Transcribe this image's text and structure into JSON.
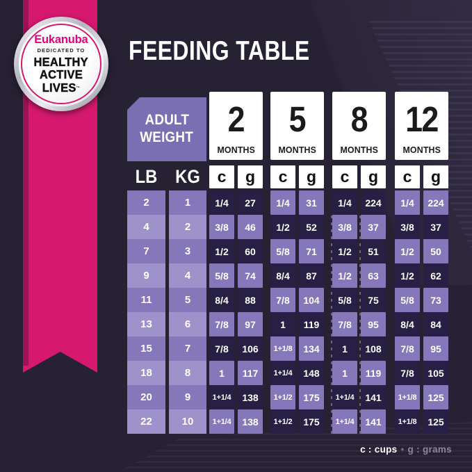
{
  "badge": {
    "brand": "Eukanuba",
    "dedicated": "DEDICATED TO",
    "lines": [
      "HEALTHY",
      "ACTIVE",
      "LIVES"
    ],
    "trademark": "™"
  },
  "chart_data": {
    "type": "table",
    "title": "FEEDING TABLE",
    "corner_header": [
      "ADULT",
      "WEIGHT"
    ],
    "weight_unit_headers": [
      "LB",
      "KG"
    ],
    "month_headers": [
      {
        "number": "2",
        "label": "MONTHS"
      },
      {
        "number": "5",
        "label": "MONTHS"
      },
      {
        "number": "8",
        "label": "MONTHS"
      },
      {
        "number": "12",
        "label": "MONTHS"
      }
    ],
    "measure_headers": [
      "c",
      "g",
      "c",
      "g",
      "c",
      "g",
      "c",
      "g"
    ],
    "rows": [
      {
        "lb": "2",
        "kg": "1",
        "values": [
          "1/4",
          "27",
          "1/4",
          "31",
          "1/4",
          "224",
          "1/4",
          "224"
        ]
      },
      {
        "lb": "4",
        "kg": "2",
        "values": [
          "3/8",
          "46",
          "1/2",
          "52",
          "3/8",
          "37",
          "3/8",
          "37"
        ]
      },
      {
        "lb": "7",
        "kg": "3",
        "values": [
          "1/2",
          "60",
          "5/8",
          "71",
          "1/2",
          "51",
          "1/2",
          "50"
        ]
      },
      {
        "lb": "9",
        "kg": "4",
        "values": [
          "5/8",
          "74",
          "8/4",
          "87",
          "1/2",
          "63",
          "1/2",
          "62"
        ]
      },
      {
        "lb": "11",
        "kg": "5",
        "values": [
          "8/4",
          "88",
          "7/8",
          "104",
          "5/8",
          "75",
          "5/8",
          "73"
        ]
      },
      {
        "lb": "13",
        "kg": "6",
        "values": [
          "7/8",
          "97",
          "1",
          "119",
          "7/8",
          "95",
          "8/4",
          "84"
        ]
      },
      {
        "lb": "15",
        "kg": "7",
        "values": [
          "7/8",
          "106",
          "1+1/8",
          "134",
          "1",
          "108",
          "7/8",
          "95"
        ]
      },
      {
        "lb": "18",
        "kg": "8",
        "values": [
          "1",
          "117",
          "1+1/4",
          "148",
          "1",
          "119",
          "7/8",
          "105"
        ]
      },
      {
        "lb": "20",
        "kg": "9",
        "values": [
          "1+1/4",
          "138",
          "1+1/2",
          "175",
          "1+1/4",
          "141",
          "1+1/8",
          "125"
        ]
      },
      {
        "lb": "22",
        "kg": "10",
        "values": [
          "1+1/4",
          "138",
          "1+1/2",
          "175",
          "1+1/4",
          "141",
          "1+1/8",
          "125"
        ]
      }
    ],
    "legend": {
      "cups": "c : cups",
      "separator": "•",
      "grams": "g : grams"
    }
  },
  "colors": {
    "background": "#272134",
    "ribbon_pink": "#d6196f",
    "ribbon_edge_dark": "#9e1356",
    "brand_pink": "#e5007e",
    "cell_dark": "#272044",
    "cell_purple": "#8478bb",
    "cell_light_purple": "#9d93ca",
    "adult_weight_purple": "#7b6fb3",
    "header_white": "#ffffff",
    "header_text_black": "#1b1b1b",
    "legend_gray": "#8b86a0"
  }
}
